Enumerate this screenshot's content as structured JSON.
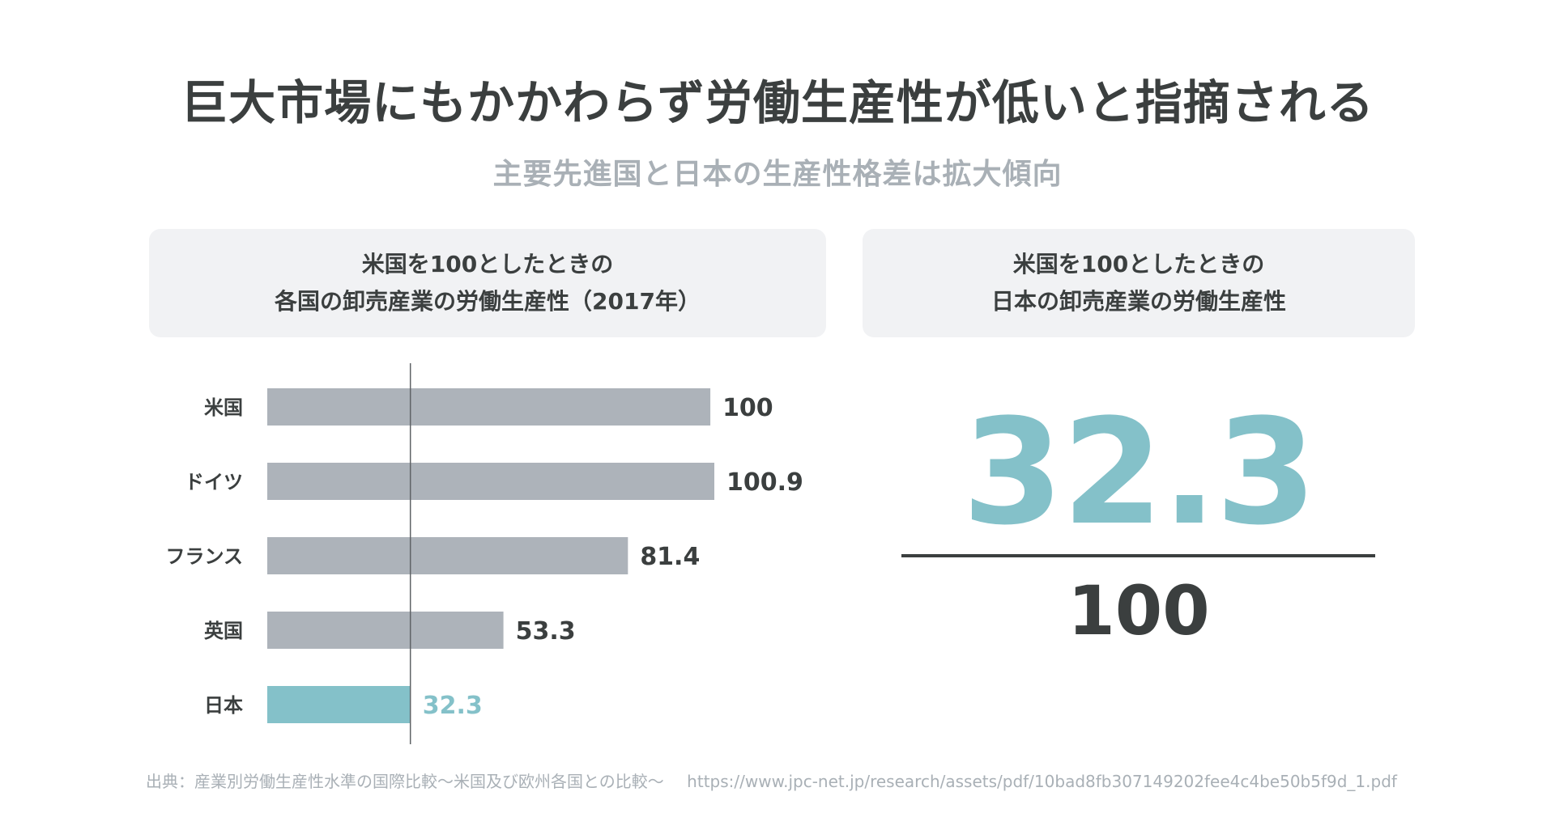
{
  "title": "巨大市場にもかかわらず労働生産性が低いと指摘される",
  "subtitle": "主要先進国と日本の生産性格差は拡大傾向",
  "left_panel": {
    "line1": "米国を100としたときの",
    "line2": "各国の卸売産業の労働生産性（2017年）"
  },
  "right_panel": {
    "line1": "米国を100としたときの",
    "line2": "日本の卸売産業の労働生産性",
    "numerator": "32.3",
    "denominator": "100"
  },
  "chart_data": {
    "type": "bar",
    "orientation": "horizontal",
    "title": "米国を100としたときの各国の卸売産業の労働生産性（2017年）",
    "categories": [
      "米国",
      "ドイツ",
      "フランス",
      "英国",
      "日本"
    ],
    "values": [
      100,
      100.9,
      81.4,
      53.3,
      32.3
    ],
    "value_labels": [
      "100",
      "100.9",
      "81.4",
      "53.3",
      "32.3"
    ],
    "highlight": "日本",
    "reference_value": 32.3,
    "xlim": [
      0,
      100.9
    ],
    "grid": false
  },
  "source": {
    "label": "出典：産業別労働生産性水準の国際比較〜米国及び欧州各国との比較〜",
    "url": "https://www.jpc-net.jp/research/assets/pdf/10bad8fb307149202fee4c4be50b5f9d_1.pdf"
  },
  "colors": {
    "bar": "#adb3ba",
    "highlight": "#84c1c9",
    "text": "#3b3f3f",
    "muted": "#a9b0b6",
    "panel_bg": "#f1f2f4"
  }
}
